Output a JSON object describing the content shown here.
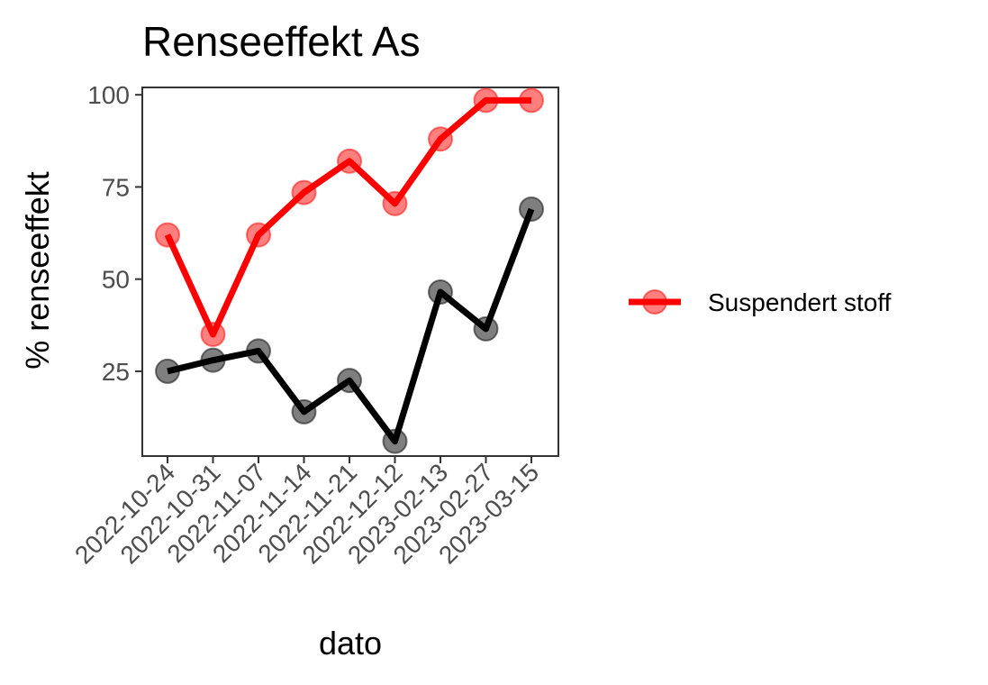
{
  "chart_data": {
    "type": "line",
    "title": "Renseeffekt As",
    "xlabel": "dato",
    "ylabel": "% renseeffekt",
    "categories": [
      "2022-10-24",
      "2022-10-31",
      "2022-11-07",
      "2022-11-14",
      "2022-11-21",
      "2022-12-12",
      "2023-02-13",
      "2023-02-27",
      "2023-03-15"
    ],
    "yticks": [
      25,
      50,
      75,
      100
    ],
    "ylim": [
      2,
      102
    ],
    "grid": false,
    "legend_position": "right",
    "series": [
      {
        "name": "Suspendert stoff",
        "color": "#ff0000",
        "values": [
          62,
          35,
          62,
          73.5,
          82,
          70.5,
          88,
          98.5,
          98.5
        ]
      },
      {
        "color": "#000000",
        "values": [
          25,
          28,
          30.5,
          14,
          22.5,
          6,
          46.5,
          36.5,
          69
        ]
      }
    ]
  }
}
